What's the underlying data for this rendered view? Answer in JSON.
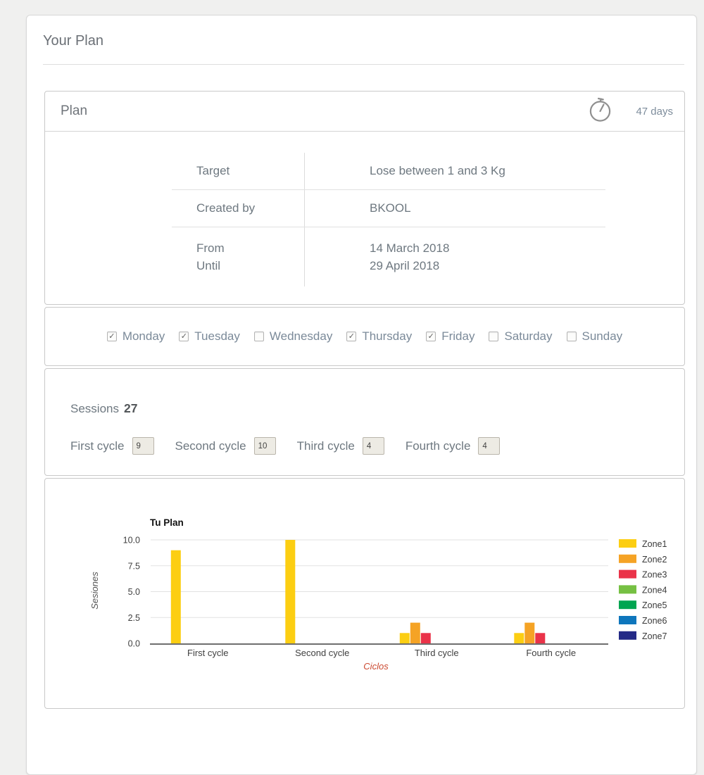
{
  "page": {
    "title": "Your Plan"
  },
  "plan": {
    "title": "Plan",
    "duration": "47 days",
    "details": {
      "rows": [
        {
          "labels": [
            "Target"
          ],
          "values": [
            "Lose between 1 and 3 Kg"
          ]
        },
        {
          "labels": [
            "Created by"
          ],
          "values": [
            "BKOOL"
          ]
        },
        {
          "labels": [
            "From",
            "Until"
          ],
          "values": [
            "14 March 2018",
            "29 April 2018"
          ]
        }
      ]
    }
  },
  "days": {
    "items": [
      {
        "label": "Monday",
        "checked": true
      },
      {
        "label": "Tuesday",
        "checked": true
      },
      {
        "label": "Wednesday",
        "checked": false
      },
      {
        "label": "Thursday",
        "checked": true
      },
      {
        "label": "Friday",
        "checked": true
      },
      {
        "label": "Saturday",
        "checked": false
      },
      {
        "label": "Sunday",
        "checked": false
      }
    ]
  },
  "sessions": {
    "label": "Sessions",
    "count": "27",
    "cycles": [
      {
        "label": "First cycle",
        "value": "9"
      },
      {
        "label": "Second cycle",
        "value": "10"
      },
      {
        "label": "Third cycle",
        "value": "4"
      },
      {
        "label": "Fourth cycle",
        "value": "4"
      }
    ]
  },
  "chart_data": {
    "type": "bar",
    "title": "Tu Plan",
    "xlabel": "Ciclos",
    "ylabel": "Sesiones",
    "categories": [
      "First cycle",
      "Second cycle",
      "Third cycle",
      "Fourth cycle"
    ],
    "series": [
      {
        "name": "Zone1",
        "color": "#FCCE12",
        "values": [
          9,
          10,
          1,
          1
        ]
      },
      {
        "name": "Zone2",
        "color": "#F5A325",
        "values": [
          0,
          0,
          2,
          2
        ]
      },
      {
        "name": "Zone3",
        "color": "#EA3349",
        "values": [
          0,
          0,
          1,
          1
        ]
      },
      {
        "name": "Zone4",
        "color": "#76C043",
        "values": [
          0,
          0,
          0,
          0
        ]
      },
      {
        "name": "Zone5",
        "color": "#00A551",
        "values": [
          0,
          0,
          0,
          0
        ]
      },
      {
        "name": "Zone6",
        "color": "#0E76BC",
        "values": [
          0,
          0,
          0,
          0
        ]
      },
      {
        "name": "Zone7",
        "color": "#242A87",
        "values": [
          0,
          0,
          0,
          0
        ]
      }
    ],
    "ylim": [
      0,
      10
    ],
    "yticks": [
      0.0,
      2.5,
      5.0,
      7.5,
      10.0
    ],
    "grid": true,
    "legend_position": "right",
    "colors": {
      "title": "#111111",
      "xlabel": "#CC4A31",
      "ylabel": "#555555",
      "tick_text": "#404040",
      "gridline": "#e2e2e2",
      "axis_line": "#6e6e6e",
      "legend_text": "#3a3a3a"
    }
  }
}
